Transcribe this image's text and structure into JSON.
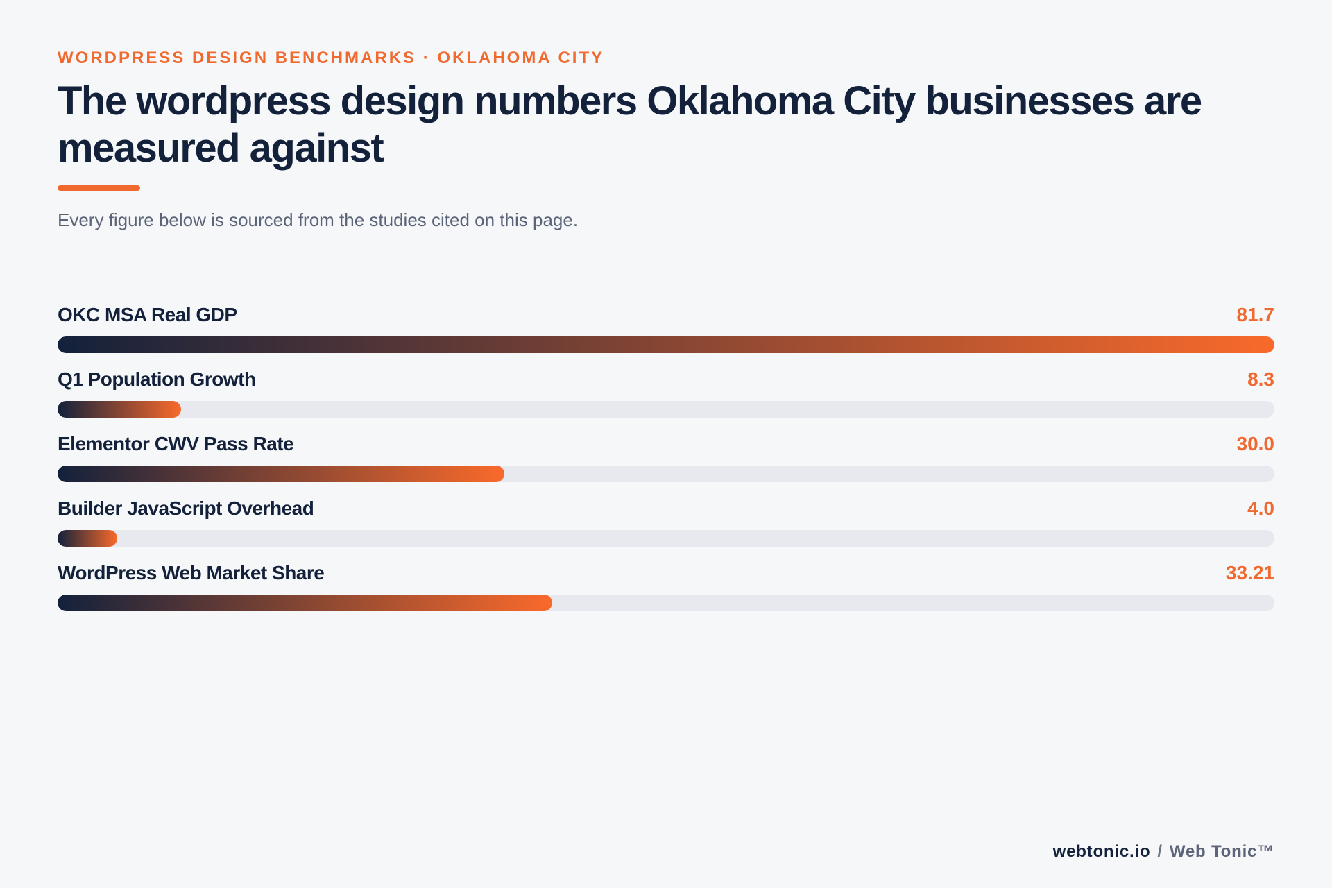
{
  "header": {
    "eyebrow": "WORDPRESS DESIGN BENCHMARKS · OKLAHOMA CITY",
    "title": "The wordpress design numbers Oklahoma City businesses are measured against",
    "subtitle": "Every figure below is sourced from the studies cited on this page."
  },
  "footer": {
    "site": "webtonic.io",
    "separator": "/",
    "brand": "Web Tonic™"
  },
  "colors": {
    "background": "#f6f7f9",
    "navy": "#13213b",
    "accent": "#f06a2f",
    "track": "#e7e9ef"
  },
  "chart_data": {
    "type": "bar",
    "orientation": "horizontal",
    "title": "",
    "xlabel": "",
    "ylabel": "",
    "grid": false,
    "xlim": [
      0,
      81.7
    ],
    "categories": [
      "OKC MSA Real GDP",
      "Q1 Population Growth",
      "Elementor CWV Pass Rate",
      "Builder JavaScript Overhead",
      "WordPress Web Market Share"
    ],
    "values": [
      81.7,
      8.3,
      30.0,
      4.0,
      33.21
    ],
    "value_labels": [
      "81.7",
      "8.3",
      "30.0",
      "4.0",
      "33.21"
    ]
  }
}
